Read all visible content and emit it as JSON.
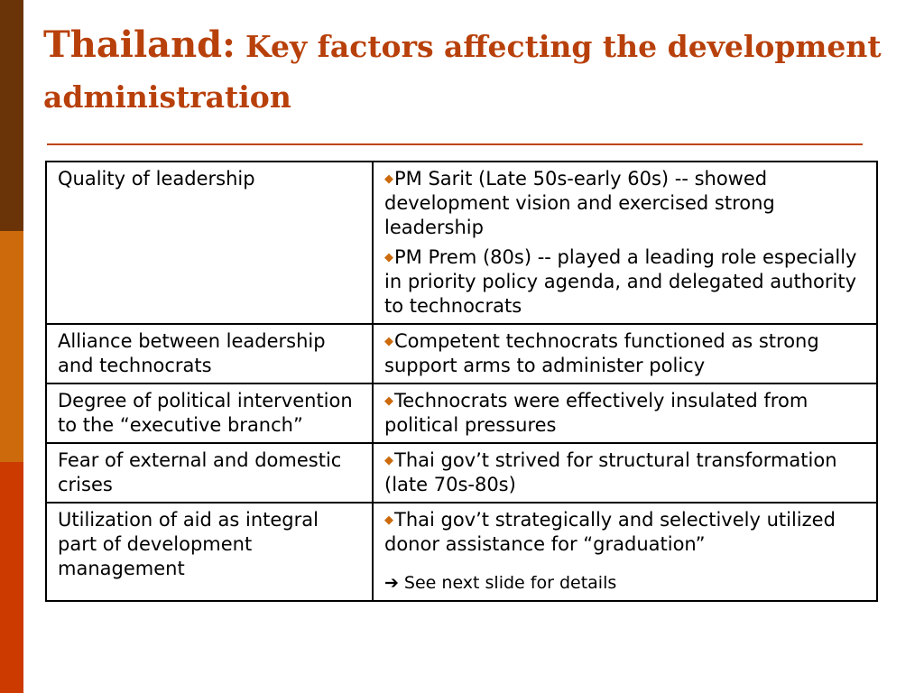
{
  "colors": {
    "title": "#b8400a",
    "bar_top": "#6b3408",
    "bar_middle": "#cc6a0c",
    "bar_bottom": "#cc3a00",
    "bullet": "#cc6a0c"
  },
  "title": {
    "country": "Thailand:",
    "rest": "Key factors affecting the development administration"
  },
  "rows": [
    {
      "factor": "Quality of leadership",
      "bullets": [
        "PM Sarit (Late 50s-early 60s) -- showed development vision and exercised strong leadership",
        "PM Prem (80s) -- played a leading role especially in priority policy agenda, and delegated authority to technocrats"
      ]
    },
    {
      "factor": "Alliance between leadership and technocrats",
      "bullets": [
        "Competent technocrats functioned as strong support arms to administer policy"
      ]
    },
    {
      "factor": "Degree of political intervention to the “executive branch”",
      "bullets": [
        "Technocrats were effectively insulated from political pressures"
      ]
    },
    {
      "factor": "Fear of external and domestic crises",
      "bullets": [
        "Thai gov’t  strived for structural transformation (late 70s-80s)"
      ]
    },
    {
      "factor": "Utilization of aid as integral part of development management",
      "bullets": [
        "Thai gov’t strategically and selectively utilized donor assistance for “graduation”"
      ],
      "note": "See next slide for details"
    }
  ],
  "icons": {
    "bullet": "diamond-bullet-icon",
    "note": "right-arrow-icon"
  }
}
